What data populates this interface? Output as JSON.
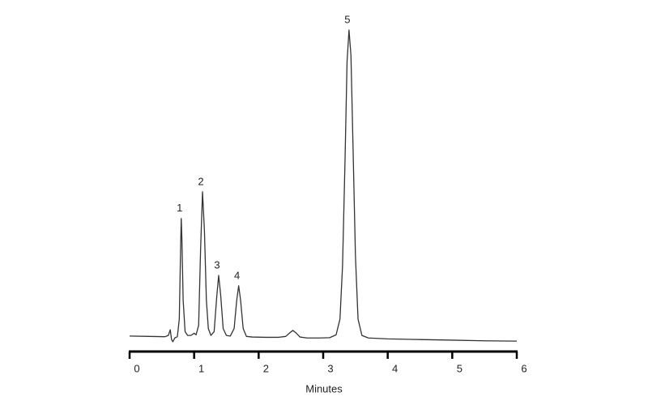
{
  "chart_data": {
    "type": "line",
    "x_label": "Minutes",
    "xlim": [
      0,
      6
    ],
    "xticks": [
      0,
      1,
      2,
      3,
      4,
      5,
      6
    ],
    "ylim": [
      0,
      100
    ],
    "series": [
      {
        "color": "#333333",
        "x": [
          0,
          0.3,
          0.55,
          0.6,
          0.63,
          0.65,
          0.67,
          0.7,
          0.74,
          0.77,
          0.79,
          0.8,
          0.81,
          0.83,
          0.86,
          0.9,
          0.95,
          1.0,
          1.03,
          1.07,
          1.1,
          1.13,
          1.16,
          1.19,
          1.22,
          1.26,
          1.31,
          1.35,
          1.38,
          1.41,
          1.45,
          1.5,
          1.56,
          1.62,
          1.66,
          1.69,
          1.72,
          1.76,
          1.81,
          1.9,
          2.1,
          2.3,
          2.42,
          2.48,
          2.53,
          2.58,
          2.64,
          2.75,
          2.95,
          3.1,
          3.2,
          3.26,
          3.3,
          3.34,
          3.37,
          3.4,
          3.43,
          3.46,
          3.5,
          3.54,
          3.6,
          3.7,
          4.0,
          4.5,
          5.0,
          5.5,
          6.0
        ],
        "values": [
          2.6,
          2.5,
          2.4,
          2.8,
          4.6,
          1.5,
          0.8,
          2.0,
          2.4,
          8,
          30,
          40,
          34,
          14,
          4,
          2.8,
          2.8,
          3.5,
          3,
          6,
          30,
          48.5,
          36,
          14,
          5,
          2.8,
          4,
          15,
          21.9,
          16,
          5,
          2.8,
          2.6,
          5,
          14,
          18.6,
          14,
          5,
          2.5,
          2.3,
          2.2,
          2.2,
          2.5,
          3.6,
          4.4,
          3.6,
          2.3,
          2,
          2,
          2.1,
          3,
          8,
          25,
          60,
          90,
          100,
          92,
          65,
          28,
          8,
          2.8,
          2,
          1.7,
          1.5,
          1.3,
          1.1,
          1.0
        ]
      }
    ],
    "peaks": [
      {
        "label": "1",
        "x": 0.8,
        "value": 40
      },
      {
        "label": "2",
        "x": 1.13,
        "value": 48.5
      },
      {
        "label": "3",
        "x": 1.38,
        "value": 21.9
      },
      {
        "label": "4",
        "x": 1.69,
        "value": 18.6
      },
      {
        "label": "5",
        "x": 3.4,
        "value": 100
      }
    ]
  }
}
